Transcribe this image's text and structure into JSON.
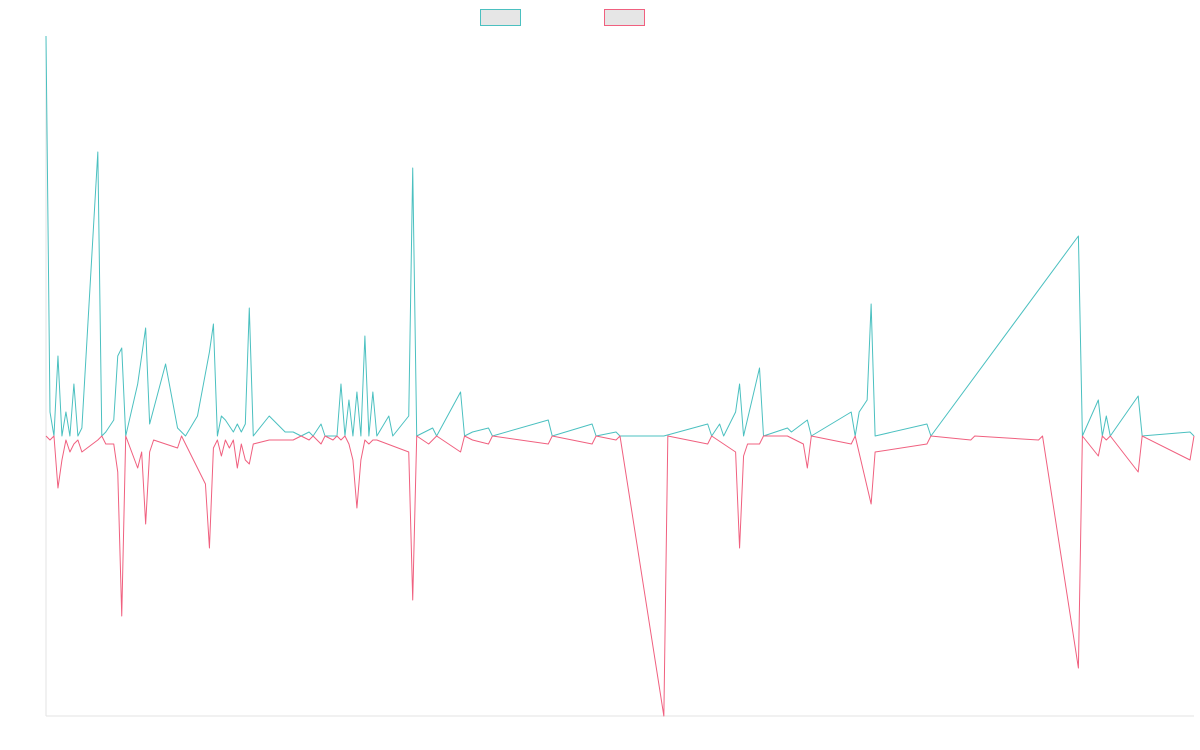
{
  "chart_data": {
    "type": "line",
    "title": "",
    "xlabel": "",
    "ylabel": "",
    "grid": false,
    "legend_position": "top-center",
    "x_range": [
      0,
      288
    ],
    "ylim": [
      -70,
      100
    ],
    "series": [
      {
        "color": "#4bc0c0",
        "fill": "#e6e6e6",
        "values": [
          [
            0,
            100
          ],
          [
            1,
            6
          ],
          [
            2,
            0
          ],
          [
            3,
            20
          ],
          [
            4,
            0
          ],
          [
            5,
            6
          ],
          [
            6,
            0
          ],
          [
            7,
            13
          ],
          [
            8,
            0
          ],
          [
            9,
            2
          ],
          [
            13,
            71
          ],
          [
            14,
            0
          ],
          [
            15,
            1
          ],
          [
            17,
            4
          ],
          [
            18,
            20
          ],
          [
            19,
            22
          ],
          [
            20,
            0
          ],
          [
            23,
            13
          ],
          [
            25,
            27
          ],
          [
            26,
            3
          ],
          [
            30,
            18
          ],
          [
            33,
            2
          ],
          [
            35,
            0
          ],
          [
            38,
            5
          ],
          [
            41,
            21
          ],
          [
            42,
            28
          ],
          [
            43,
            0
          ],
          [
            44,
            5
          ],
          [
            45,
            4
          ],
          [
            47,
            1
          ],
          [
            48,
            3
          ],
          [
            49,
            1
          ],
          [
            50,
            3
          ],
          [
            51,
            32
          ],
          [
            52,
            0
          ],
          [
            56,
            5
          ],
          [
            60,
            1
          ],
          [
            62,
            1
          ],
          [
            64,
            0
          ],
          [
            66,
            1
          ],
          [
            67,
            0
          ],
          [
            69,
            3
          ],
          [
            70,
            0
          ],
          [
            72,
            0
          ],
          [
            73,
            0
          ],
          [
            74,
            13
          ],
          [
            75,
            0
          ],
          [
            76,
            9
          ],
          [
            77,
            0
          ],
          [
            78,
            11
          ],
          [
            79,
            0
          ],
          [
            80,
            25
          ],
          [
            81,
            0
          ],
          [
            82,
            11
          ],
          [
            83,
            0
          ],
          [
            86,
            5
          ],
          [
            87,
            0
          ],
          [
            91,
            5
          ],
          [
            92,
            67
          ],
          [
            93,
            0
          ],
          [
            95,
            1
          ],
          [
            97,
            2
          ],
          [
            98,
            0
          ],
          [
            104,
            11
          ],
          [
            105,
            0
          ],
          [
            107,
            1
          ],
          [
            111,
            2
          ],
          [
            112,
            0
          ],
          [
            126,
            4
          ],
          [
            127,
            0
          ],
          [
            137,
            3
          ],
          [
            138,
            0
          ],
          [
            143,
            1
          ],
          [
            144,
            0
          ],
          [
            155,
            0
          ],
          [
            166,
            3
          ],
          [
            167,
            0
          ],
          [
            169,
            3
          ],
          [
            170,
            0
          ],
          [
            173,
            6
          ],
          [
            174,
            13
          ],
          [
            175,
            0
          ],
          [
            179,
            17
          ],
          [
            180,
            0
          ],
          [
            186,
            2
          ],
          [
            187,
            1
          ],
          [
            191,
            4
          ],
          [
            192,
            0
          ],
          [
            202,
            6
          ],
          [
            203,
            0
          ],
          [
            204,
            6
          ],
          [
            206,
            9
          ],
          [
            207,
            33
          ],
          [
            208,
            0
          ],
          [
            221,
            3
          ],
          [
            222,
            0
          ],
          [
            259,
            50
          ],
          [
            260,
            0
          ],
          [
            264,
            9
          ],
          [
            265,
            0
          ],
          [
            266,
            5
          ],
          [
            267,
            0
          ],
          [
            274,
            10
          ],
          [
            275,
            0
          ],
          [
            287,
            1
          ],
          [
            288,
            0
          ]
        ]
      },
      {
        "color": "#f0607f",
        "fill": "#e6e6e6",
        "values": [
          [
            0,
            0
          ],
          [
            1,
            -1
          ],
          [
            2,
            0
          ],
          [
            3,
            -13
          ],
          [
            4,
            -6
          ],
          [
            5,
            -1
          ],
          [
            6,
            -4
          ],
          [
            7,
            -2
          ],
          [
            8,
            -1
          ],
          [
            9,
            -4
          ],
          [
            13,
            -1
          ],
          [
            14,
            0
          ],
          [
            15,
            -2
          ],
          [
            17,
            -2
          ],
          [
            18,
            -9
          ],
          [
            19,
            -45
          ],
          [
            20,
            0
          ],
          [
            23,
            -8
          ],
          [
            24,
            -4
          ],
          [
            25,
            -22
          ],
          [
            26,
            -4
          ],
          [
            27,
            -1
          ],
          [
            30,
            -2
          ],
          [
            33,
            -3
          ],
          [
            34,
            0
          ],
          [
            40,
            -12
          ],
          [
            41,
            -28
          ],
          [
            42,
            -3
          ],
          [
            43,
            -1
          ],
          [
            44,
            -5
          ],
          [
            45,
            -1
          ],
          [
            46,
            -3
          ],
          [
            47,
            -1
          ],
          [
            48,
            -8
          ],
          [
            49,
            -2
          ],
          [
            50,
            -6
          ],
          [
            51,
            -7
          ],
          [
            52,
            -2
          ],
          [
            56,
            -1
          ],
          [
            60,
            -1
          ],
          [
            62,
            -1
          ],
          [
            64,
            0
          ],
          [
            66,
            -1
          ],
          [
            67,
            0
          ],
          [
            69,
            -2
          ],
          [
            70,
            0
          ],
          [
            72,
            -1
          ],
          [
            73,
            0
          ],
          [
            74,
            -1
          ],
          [
            75,
            0
          ],
          [
            76,
            -2
          ],
          [
            77,
            -6
          ],
          [
            78,
            -18
          ],
          [
            79,
            -6
          ],
          [
            80,
            -1
          ],
          [
            81,
            -2
          ],
          [
            82,
            -1
          ],
          [
            83,
            -1
          ],
          [
            91,
            -4
          ],
          [
            92,
            -41
          ],
          [
            93,
            0
          ],
          [
            96,
            -2
          ],
          [
            97,
            -1
          ],
          [
            98,
            0
          ],
          [
            104,
            -4
          ],
          [
            105,
            0
          ],
          [
            107,
            -1
          ],
          [
            111,
            -2
          ],
          [
            112,
            0
          ],
          [
            126,
            -2
          ],
          [
            127,
            0
          ],
          [
            137,
            -2
          ],
          [
            138,
            0
          ],
          [
            143,
            -1
          ],
          [
            144,
            0
          ],
          [
            155,
            -70
          ],
          [
            156,
            0
          ],
          [
            166,
            -2
          ],
          [
            167,
            0
          ],
          [
            173,
            -4
          ],
          [
            174,
            -28
          ],
          [
            175,
            -5
          ],
          [
            176,
            -2
          ],
          [
            179,
            -2
          ],
          [
            180,
            0
          ],
          [
            186,
            0
          ],
          [
            190,
            -2
          ],
          [
            191,
            -8
          ],
          [
            192,
            0
          ],
          [
            202,
            -2
          ],
          [
            203,
            0
          ],
          [
            207,
            -17
          ],
          [
            208,
            -4
          ],
          [
            221,
            -2
          ],
          [
            222,
            0
          ],
          [
            232,
            -1
          ],
          [
            233,
            0
          ],
          [
            249,
            -1
          ],
          [
            250,
            0
          ],
          [
            259,
            -58
          ],
          [
            260,
            0
          ],
          [
            264,
            -5
          ],
          [
            265,
            0
          ],
          [
            266,
            -1
          ],
          [
            267,
            0
          ],
          [
            274,
            -9
          ],
          [
            275,
            0
          ],
          [
            287,
            -6
          ],
          [
            288,
            0
          ]
        ]
      }
    ]
  }
}
